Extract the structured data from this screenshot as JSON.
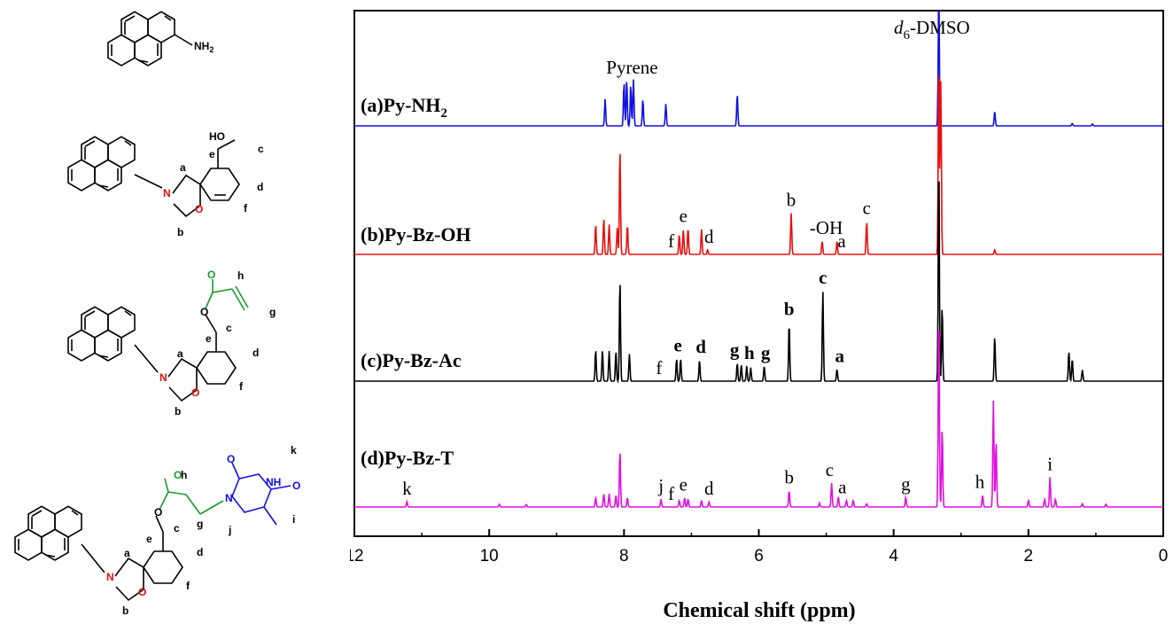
{
  "chart_data": {
    "type": "line",
    "xlabel": "Chemical shift (ppm)",
    "xlim": [
      12,
      0
    ],
    "x_ticks": [
      "12",
      "10",
      "8",
      "6",
      "4",
      "2",
      "0"
    ],
    "solvent_label": "-DMSO",
    "solvent_label_italic": "d",
    "solvent_label_sub": "6",
    "solvent_shift": 3.33,
    "series": [
      {
        "name": "(a)Py-NH",
        "name_sub": "2",
        "color": "#1010e0",
        "peaks": [
          [
            8.28,
            0.55
          ],
          [
            8.0,
            0.9
          ],
          [
            7.96,
            0.95
          ],
          [
            7.9,
            0.85
          ],
          [
            7.86,
            0.95
          ],
          [
            7.72,
            0.55
          ],
          [
            7.38,
            0.45
          ],
          [
            6.32,
            0.65
          ],
          [
            3.33,
            3.0
          ],
          [
            2.5,
            0.3
          ],
          [
            1.35,
            0.05
          ],
          [
            1.05,
            0.04
          ]
        ],
        "annotations": [
          {
            "text": "Pyrene",
            "x": 7.88,
            "bold": false
          }
        ]
      },
      {
        "name": "(b)Py-Bz-OH",
        "color": "#e81010",
        "peaks": [
          [
            8.42,
            0.45
          ],
          [
            8.3,
            0.55
          ],
          [
            8.22,
            0.45
          ],
          [
            8.1,
            0.4
          ],
          [
            8.06,
            1.6
          ],
          [
            7.95,
            0.45
          ],
          [
            7.18,
            0.3
          ],
          [
            7.12,
            0.38
          ],
          [
            7.05,
            0.4
          ],
          [
            6.85,
            0.38
          ],
          [
            6.76,
            0.07
          ],
          [
            5.52,
            0.62
          ],
          [
            5.06,
            0.2
          ],
          [
            4.84,
            0.2
          ],
          [
            4.4,
            0.5
          ],
          [
            3.33,
            3.0
          ],
          [
            3.3,
            2.6
          ],
          [
            2.5,
            0.07
          ]
        ],
        "annotations": [
          {
            "text": "f",
            "x": 7.3,
            "bold": false
          },
          {
            "text": "e",
            "x": 7.12,
            "bold": false
          },
          {
            "text": "d",
            "x": 6.74,
            "bold": false
          },
          {
            "text": "b",
            "x": 5.52,
            "bold": false
          },
          {
            "text": "-OH",
            "x": 5.0,
            "bold": false
          },
          {
            "text": "a",
            "x": 4.77,
            "bold": false
          },
          {
            "text": "c",
            "x": 4.4,
            "bold": false
          }
        ]
      },
      {
        "name": "(c)Py-Bz-Ac",
        "color": "#000000",
        "peaks": [
          [
            8.42,
            0.42
          ],
          [
            8.32,
            0.42
          ],
          [
            8.22,
            0.4
          ],
          [
            8.12,
            0.4
          ],
          [
            8.06,
            1.35
          ],
          [
            7.92,
            0.36
          ],
          [
            7.22,
            0.3
          ],
          [
            7.16,
            0.3
          ],
          [
            6.88,
            0.28
          ],
          [
            6.32,
            0.24
          ],
          [
            6.26,
            0.22
          ],
          [
            6.18,
            0.2
          ],
          [
            6.12,
            0.18
          ],
          [
            5.92,
            0.2
          ],
          [
            5.55,
            0.78
          ],
          [
            5.05,
            1.2
          ],
          [
            4.84,
            0.16
          ],
          [
            3.33,
            3.0
          ],
          [
            3.28,
            1.0
          ],
          [
            2.5,
            0.6
          ],
          [
            1.4,
            0.4
          ],
          [
            1.35,
            0.3
          ],
          [
            1.2,
            0.15
          ]
        ],
        "annotations": [
          {
            "text": "f",
            "x": 7.48,
            "bold": false
          },
          {
            "text": "e",
            "x": 7.2,
            "bold": true
          },
          {
            "text": "d",
            "x": 6.86,
            "bold": true
          },
          {
            "text": "g",
            "x": 6.36,
            "bold": true
          },
          {
            "text": "h",
            "x": 6.14,
            "bold": true
          },
          {
            "text": "g",
            "x": 5.9,
            "bold": true
          },
          {
            "text": "b",
            "x": 5.55,
            "bold": true
          },
          {
            "text": "c",
            "x": 5.05,
            "bold": true
          },
          {
            "text": "a",
            "x": 4.8,
            "bold": true
          }
        ]
      },
      {
        "name": "(d)Py-Bz-T",
        "color": "#e010e0",
        "peaks": [
          [
            11.22,
            0.08
          ],
          [
            9.85,
            0.04
          ],
          [
            9.45,
            0.04
          ],
          [
            8.42,
            0.14
          ],
          [
            8.3,
            0.2
          ],
          [
            8.22,
            0.2
          ],
          [
            8.12,
            0.18
          ],
          [
            8.06,
            0.85
          ],
          [
            7.95,
            0.14
          ],
          [
            7.45,
            0.12
          ],
          [
            7.18,
            0.1
          ],
          [
            7.1,
            0.14
          ],
          [
            7.05,
            0.12
          ],
          [
            6.85,
            0.1
          ],
          [
            6.74,
            0.08
          ],
          [
            5.55,
            0.25
          ],
          [
            5.1,
            0.06
          ],
          [
            4.92,
            0.36
          ],
          [
            4.82,
            0.16
          ],
          [
            4.7,
            0.1
          ],
          [
            4.6,
            0.1
          ],
          [
            4.4,
            0.05
          ],
          [
            3.82,
            0.15
          ],
          [
            3.33,
            3.0
          ],
          [
            3.28,
            1.2
          ],
          [
            2.68,
            0.18
          ],
          [
            2.52,
            1.6
          ],
          [
            2.48,
            1.0
          ],
          [
            2.0,
            0.1
          ],
          [
            1.76,
            0.12
          ],
          [
            1.68,
            0.45
          ],
          [
            1.6,
            0.12
          ],
          [
            1.2,
            0.05
          ],
          [
            0.85,
            0.04
          ]
        ],
        "annotations": [
          {
            "text": "k",
            "x": 11.22,
            "bold": false
          },
          {
            "text": "j",
            "x": 7.45,
            "bold": false
          },
          {
            "text": "f",
            "x": 7.3,
            "bold": false
          },
          {
            "text": "e",
            "x": 7.12,
            "bold": false
          },
          {
            "text": "d",
            "x": 6.74,
            "bold": false
          },
          {
            "text": "b",
            "x": 5.55,
            "bold": false
          },
          {
            "text": "c",
            "x": 4.95,
            "bold": false
          },
          {
            "text": "a",
            "x": 4.76,
            "bold": false
          },
          {
            "text": "g",
            "x": 3.82,
            "bold": false
          },
          {
            "text": "h",
            "x": 2.72,
            "bold": false
          },
          {
            "text": "i",
            "x": 1.68,
            "bold": false
          }
        ]
      }
    ]
  },
  "structures": {
    "amine": "NH",
    "amine_sub": "2",
    "ho": "HO",
    "n": "N",
    "o": "O",
    "nh": "NH",
    "a": "a",
    "b": "b",
    "c": "c",
    "d": "d",
    "e": "e",
    "f": "f",
    "g": "g",
    "h": "h",
    "i": "i",
    "j": "j",
    "k": "k"
  }
}
